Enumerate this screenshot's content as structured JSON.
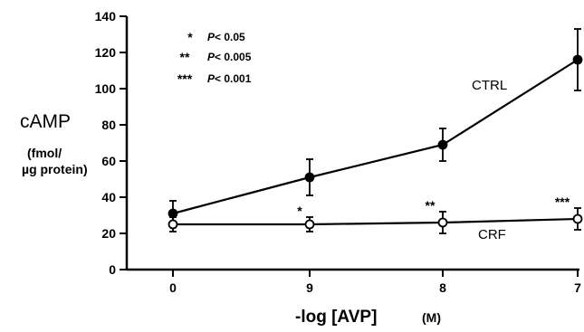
{
  "chart_data": {
    "type": "line",
    "xlabel": "-log [AVP]",
    "xlabel_unit": "(M)",
    "ylabel": "cAMP",
    "ylabel_unit": [
      "(fmol/",
      "µg protein)"
    ],
    "categories": [
      "0",
      "9",
      "8",
      "7"
    ],
    "ylim": [
      0,
      140
    ],
    "yticks": [
      0,
      20,
      40,
      60,
      80,
      100,
      120,
      140
    ],
    "grid": false,
    "series": [
      {
        "name": "CTRL",
        "marker": "filled-circle",
        "values": [
          31,
          51,
          69,
          116
        ],
        "error": [
          7,
          10,
          9,
          17
        ]
      },
      {
        "name": "CRF",
        "marker": "open-circle",
        "values": [
          25,
          25,
          26,
          28
        ],
        "error": [
          4,
          4,
          6,
          6
        ],
        "significance": [
          "",
          "*",
          "**",
          "***"
        ]
      }
    ],
    "legend": [
      {
        "stars": "*",
        "p_label": "P",
        "p_text": "< 0.05"
      },
      {
        "stars": "**",
        "p_label": "P",
        "p_text": "< 0.005"
      },
      {
        "stars": "***",
        "p_label": "P",
        "p_text": "< 0.001"
      }
    ],
    "legend_position": "top-left"
  }
}
